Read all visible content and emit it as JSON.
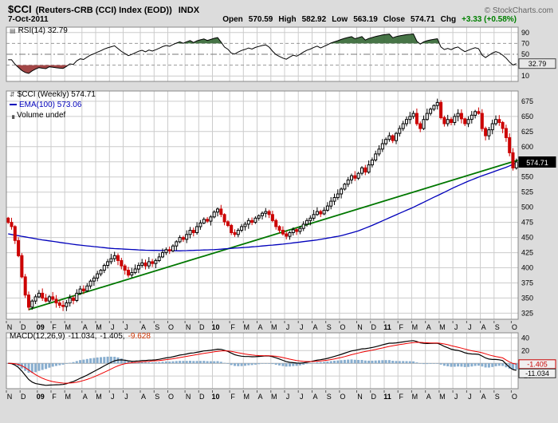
{
  "header": {
    "symbol": "$CCI",
    "name": "(Reuters-CRB (CCI) Index (EOD))",
    "exchange": "INDX",
    "copyright": "© StockCharts.com",
    "date": "7-Oct-2011",
    "ohlc": {
      "open_label": "Open",
      "open": "570.59",
      "high_label": "High",
      "high": "582.92",
      "low_label": "Low",
      "low": "563.19",
      "close_label": "Close",
      "close": "574.71",
      "chg_label": "Chg",
      "chg": "+3.33 (+0.58%)"
    }
  },
  "rsi_panel": {
    "label": "RSI(14) 32.79",
    "box_text": "32.79"
  },
  "main_panel": {
    "price_label": "$CCI (Weekly) 574.71",
    "ema_label": "EMA(100) 573.06",
    "volume_label": "Volume undef",
    "box_text": "574.71"
  },
  "macd_panel": {
    "label": "MACD(12,26,9)",
    "macd_text": "-11.034,",
    "signal_text": "-1.405,",
    "hist_text": "-9.628",
    "signal_box_text": "-1.405",
    "macd_box_text": "-11.034"
  },
  "colors": {
    "up": "#000000",
    "down": "#cc0000",
    "ema": "#0000bb",
    "trendline": "#007700",
    "rsi_line": "#000000",
    "rsi_over_fill": "#336633",
    "rsi_under_fill": "#993333",
    "macd_line": "#000000",
    "signal_line": "#ee0000",
    "histogram": "#88aecf",
    "chg_positive": "#008000",
    "grid": "#cccccc",
    "plot_bg": "#ffffff",
    "border": "#888888"
  },
  "chart_data": {
    "type": "candlestick",
    "title": "$CCI Reuters-CRB (CCI) Index (EOD) Weekly",
    "timeframe": "Weekly",
    "weeks": 149,
    "ohlc_last": {
      "open": 570.59,
      "high": 582.92,
      "low": 563.19,
      "close": 574.71,
      "chg": 3.33,
      "chg_pct": 0.58
    },
    "closes": [
      475,
      468,
      445,
      420,
      385,
      355,
      335,
      345,
      352,
      358,
      350,
      345,
      352,
      348,
      342,
      338,
      336,
      342,
      350,
      346,
      358,
      365,
      362,
      370,
      378,
      383,
      390,
      396,
      404,
      410,
      415,
      420,
      412,
      403,
      396,
      388,
      392,
      398,
      404,
      408,
      403,
      410,
      407,
      412,
      418,
      425,
      430,
      428,
      436,
      443,
      450,
      447,
      455,
      462,
      458,
      468,
      474,
      480,
      477,
      484,
      492,
      497,
      488,
      476,
      470,
      458,
      455,
      462,
      468,
      472,
      478,
      475,
      482,
      486,
      490,
      493,
      488,
      478,
      468,
      462,
      456,
      452,
      458,
      463,
      460,
      465,
      472,
      478,
      482,
      488,
      493,
      489,
      495,
      502,
      510,
      516,
      522,
      530,
      538,
      545,
      552,
      548,
      556,
      565,
      558,
      570,
      578,
      588,
      596,
      605,
      612,
      618,
      610,
      622,
      630,
      638,
      645,
      650,
      655,
      638,
      630,
      645,
      655,
      662,
      668,
      673,
      648,
      638,
      645,
      640,
      650,
      655,
      646,
      638,
      645,
      652,
      658,
      655,
      630,
      618,
      628,
      638,
      645,
      640,
      630,
      615,
      590,
      565,
      574.71
    ],
    "x_axis_labels": [
      {
        "t": "N",
        "w": 0
      },
      {
        "t": "D",
        "w": 4
      },
      {
        "t": "09",
        "w": 9,
        "yr": true
      },
      {
        "t": "F",
        "w": 13
      },
      {
        "t": "M",
        "w": 17
      },
      {
        "t": "A",
        "w": 22
      },
      {
        "t": "M",
        "w": 26
      },
      {
        "t": "J",
        "w": 30
      },
      {
        "t": "J",
        "w": 34
      },
      {
        "t": "A",
        "w": 39
      },
      {
        "t": "S",
        "w": 43
      },
      {
        "t": "O",
        "w": 47
      },
      {
        "t": "N",
        "w": 52
      },
      {
        "t": "D",
        "w": 56
      },
      {
        "t": "10",
        "w": 60,
        "yr": true
      },
      {
        "t": "F",
        "w": 65
      },
      {
        "t": "M",
        "w": 69
      },
      {
        "t": "A",
        "w": 73
      },
      {
        "t": "M",
        "w": 77
      },
      {
        "t": "J",
        "w": 81
      },
      {
        "t": "J",
        "w": 85
      },
      {
        "t": "A",
        "w": 89
      },
      {
        "t": "S",
        "w": 93
      },
      {
        "t": "O",
        "w": 97
      },
      {
        "t": "N",
        "w": 102
      },
      {
        "t": "D",
        "w": 106
      },
      {
        "t": "11",
        "w": 110,
        "yr": true
      },
      {
        "t": "F",
        "w": 114
      },
      {
        "t": "M",
        "w": 118
      },
      {
        "t": "A",
        "w": 122
      },
      {
        "t": "M",
        "w": 126
      },
      {
        "t": "J",
        "w": 130
      },
      {
        "t": "J",
        "w": 134
      },
      {
        "t": "A",
        "w": 138
      },
      {
        "t": "S",
        "w": 142
      },
      {
        "t": "O",
        "w": 147
      }
    ],
    "main": {
      "ylim": [
        315,
        692
      ],
      "ticks": [
        675,
        650,
        625,
        600,
        575,
        550,
        525,
        500,
        475,
        450,
        425,
        400,
        375,
        350,
        325
      ],
      "last_value": 574.71
    },
    "ema100": {
      "period": 100,
      "last": 573.06,
      "keypoints": [
        [
          0,
          456
        ],
        [
          10,
          446
        ],
        [
          20,
          438
        ],
        [
          30,
          432
        ],
        [
          40,
          429
        ],
        [
          50,
          428
        ],
        [
          60,
          430
        ],
        [
          70,
          434
        ],
        [
          80,
          439
        ],
        [
          90,
          446
        ],
        [
          97,
          453
        ],
        [
          102,
          461
        ],
        [
          106,
          470
        ],
        [
          110,
          480
        ],
        [
          114,
          490
        ],
        [
          118,
          500
        ],
        [
          122,
          511
        ],
        [
          126,
          522
        ],
        [
          130,
          533
        ],
        [
          134,
          543
        ],
        [
          138,
          552
        ],
        [
          142,
          560
        ],
        [
          145,
          566
        ],
        [
          148,
          573.06
        ]
      ]
    },
    "trendline": {
      "from_week": 6,
      "from_value": 331,
      "to_week": 148,
      "to_value": 577
    },
    "rsi": {
      "period": 14,
      "last": 32.79,
      "ticks": [
        90,
        70,
        50,
        30,
        10
      ],
      "overbought": 70,
      "oversold": 30,
      "mid": 50,
      "ylim": [
        0,
        100
      ]
    },
    "macd": {
      "params": [
        12,
        26,
        9
      ],
      "macd_last": -11.034,
      "signal_last": -1.405,
      "hist_last": -9.628,
      "ticks": [
        40,
        20,
        0,
        -20
      ],
      "ylim": [
        -40,
        48
      ]
    }
  }
}
